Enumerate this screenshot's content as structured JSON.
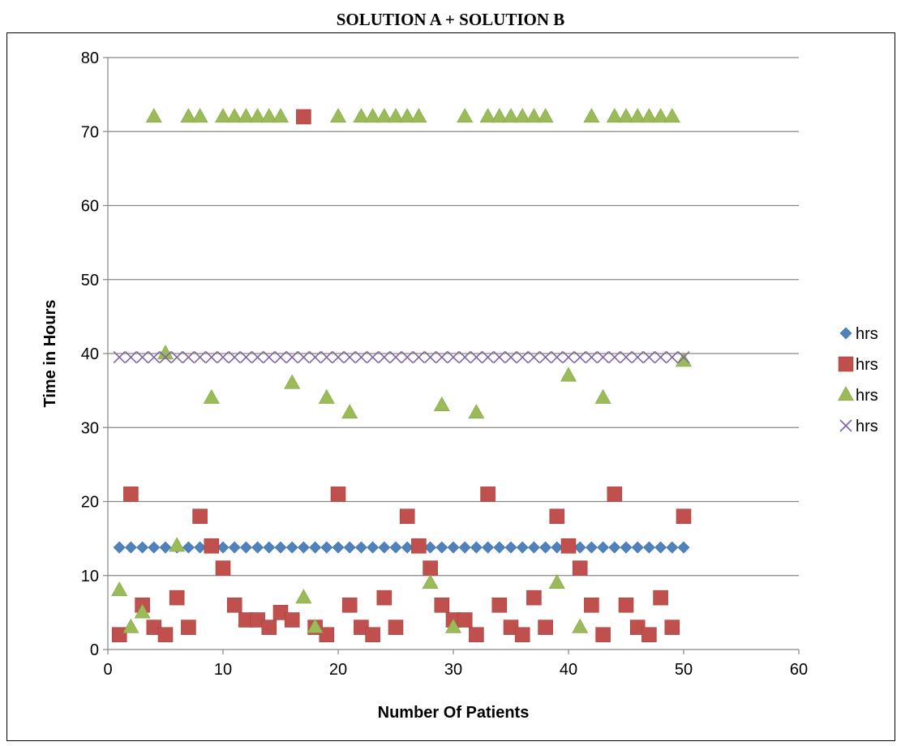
{
  "chart_data": {
    "type": "scatter",
    "title": "SOLUTION A + SOLUTION B",
    "xlabel": "Number Of Patients",
    "ylabel": "Time in Hours",
    "xlim": [
      0,
      60
    ],
    "ylim": [
      0,
      80
    ],
    "x_ticks": [
      0,
      10,
      20,
      30,
      40,
      50,
      60
    ],
    "y_ticks": [
      0,
      10,
      20,
      30,
      40,
      50,
      60,
      70,
      80
    ],
    "grid": "horizontal major gridlines",
    "legend_position": "right",
    "series": [
      {
        "name": "hrs",
        "marker": "diamond",
        "color": "#4F81BD",
        "x": [
          1,
          2,
          3,
          4,
          5,
          6,
          7,
          8,
          9,
          10,
          11,
          12,
          13,
          14,
          15,
          16,
          17,
          18,
          19,
          20,
          21,
          22,
          23,
          24,
          25,
          26,
          27,
          28,
          29,
          30,
          31,
          32,
          33,
          34,
          35,
          36,
          37,
          38,
          39,
          40,
          41,
          42,
          43,
          44,
          45,
          46,
          47,
          48,
          49,
          50
        ],
        "y": [
          13.8,
          13.8,
          13.8,
          13.8,
          13.8,
          13.8,
          13.8,
          13.8,
          13.8,
          13.8,
          13.8,
          13.8,
          13.8,
          13.8,
          13.8,
          13.8,
          13.8,
          13.8,
          13.8,
          13.8,
          13.8,
          13.8,
          13.8,
          13.8,
          13.8,
          13.8,
          13.8,
          13.8,
          13.8,
          13.8,
          13.8,
          13.8,
          13.8,
          13.8,
          13.8,
          13.8,
          13.8,
          13.8,
          13.8,
          13.8,
          13.8,
          13.8,
          13.8,
          13.8,
          13.8,
          13.8,
          13.8,
          13.8,
          13.8,
          13.8
        ]
      },
      {
        "name": "hrs",
        "marker": "square",
        "color": "#C0504D",
        "x": [
          1,
          2,
          3,
          4,
          5,
          6,
          7,
          8,
          9,
          10,
          11,
          12,
          13,
          14,
          15,
          16,
          17,
          18,
          19,
          20,
          21,
          22,
          23,
          24,
          25,
          26,
          27,
          28,
          29,
          30,
          31,
          32,
          33,
          34,
          35,
          36,
          37,
          38,
          39,
          40,
          41,
          42,
          43,
          44,
          45,
          46,
          47,
          48,
          49,
          50
        ],
        "y": [
          2,
          21,
          6,
          3,
          2,
          7,
          3,
          18,
          14,
          11,
          6,
          4,
          4,
          3,
          5,
          4,
          72,
          3,
          2,
          21,
          6,
          3,
          2,
          7,
          3,
          18,
          14,
          11,
          6,
          4,
          4,
          2,
          21,
          6,
          3,
          2,
          7,
          3,
          18,
          14,
          11,
          6,
          2,
          21,
          6,
          3,
          2,
          7,
          3,
          18
        ]
      },
      {
        "name": "hrs",
        "marker": "triangle",
        "color": "#9BBB59",
        "x": [
          1,
          2,
          3,
          4,
          5,
          6,
          7,
          8,
          9,
          10,
          11,
          12,
          13,
          14,
          15,
          16,
          17,
          18,
          19,
          20,
          21,
          22,
          23,
          24,
          25,
          26,
          27,
          28,
          29,
          30,
          31,
          32,
          33,
          34,
          35,
          36,
          37,
          38,
          39,
          40,
          41,
          42,
          43,
          44,
          45,
          46,
          47,
          48,
          49,
          50
        ],
        "y": [
          8,
          3,
          5,
          72,
          40,
          14,
          72,
          72,
          34,
          72,
          72,
          72,
          72,
          72,
          72,
          36,
          7,
          3,
          34,
          72,
          32,
          72,
          72,
          72,
          72,
          72,
          72,
          9,
          33,
          3,
          72,
          32,
          72,
          72,
          72,
          72,
          72,
          72,
          9,
          37,
          3,
          72,
          34,
          72,
          72,
          72,
          72,
          72,
          72,
          39
        ]
      },
      {
        "name": "hrs",
        "marker": "x",
        "color": "#8064A2",
        "x": [
          1,
          2,
          3,
          4,
          5,
          6,
          7,
          8,
          9,
          10,
          11,
          12,
          13,
          14,
          15,
          16,
          17,
          18,
          19,
          20,
          21,
          22,
          23,
          24,
          25,
          26,
          27,
          28,
          29,
          30,
          31,
          32,
          33,
          34,
          35,
          36,
          37,
          38,
          39,
          40,
          41,
          42,
          43,
          44,
          45,
          46,
          47,
          48,
          49,
          50
        ],
        "y": [
          39.5,
          39.5,
          39.5,
          39.5,
          39.5,
          39.5,
          39.5,
          39.5,
          39.5,
          39.5,
          39.5,
          39.5,
          39.5,
          39.5,
          39.5,
          39.5,
          39.5,
          39.5,
          39.5,
          39.5,
          39.5,
          39.5,
          39.5,
          39.5,
          39.5,
          39.5,
          39.5,
          39.5,
          39.5,
          39.5,
          39.5,
          39.5,
          39.5,
          39.5,
          39.5,
          39.5,
          39.5,
          39.5,
          39.5,
          39.5,
          39.5,
          39.5,
          39.5,
          39.5,
          39.5,
          39.5,
          39.5,
          39.5,
          39.5,
          39.5
        ]
      }
    ]
  }
}
